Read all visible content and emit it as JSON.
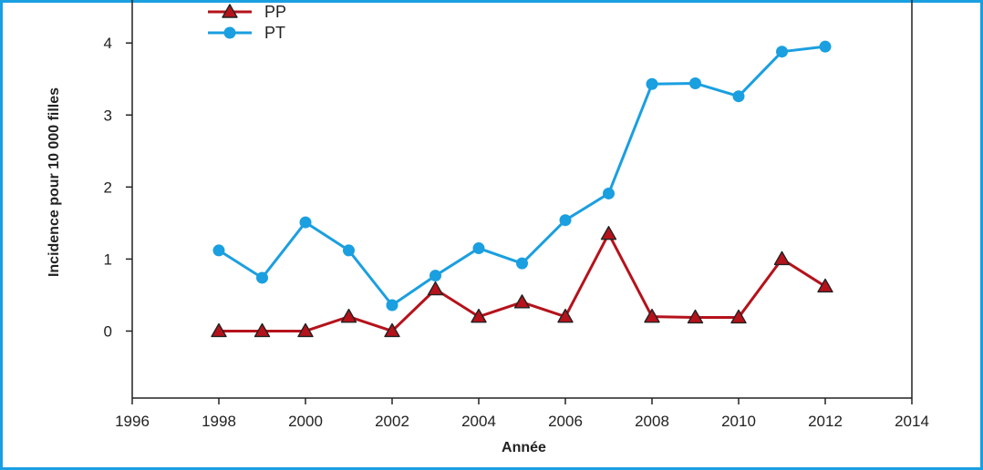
{
  "chart_data": {
    "type": "line",
    "xlabel": "Année",
    "ylabel": "Incidence pour 10 000 filles",
    "xlim": [
      1996,
      2014
    ],
    "ylim": [
      -0.93,
      4.85
    ],
    "xticks": [
      1996,
      1998,
      2000,
      2002,
      2004,
      2006,
      2008,
      2010,
      2012,
      2014
    ],
    "yticks": [
      0,
      1,
      2,
      3,
      4
    ],
    "grid": false,
    "legend_position": "top-left",
    "series": [
      {
        "name": "PP",
        "color": "#b5121b",
        "marker": "triangle",
        "x": [
          1998,
          1999,
          2000,
          2001,
          2002,
          2003,
          2004,
          2005,
          2006,
          2007,
          2008,
          2009,
          2010,
          2011,
          2012
        ],
        "y": [
          0,
          0,
          0,
          0.2,
          0,
          0.58,
          0.2,
          0.4,
          0.2,
          1.35,
          0.2,
          0.19,
          0.19,
          1.0,
          0.62
        ]
      },
      {
        "name": "PT",
        "color": "#1a9fe0",
        "marker": "circle",
        "x": [
          1998,
          1999,
          2000,
          2001,
          2002,
          2003,
          2004,
          2005,
          2006,
          2007,
          2008,
          2009,
          2010,
          2011,
          2012
        ],
        "y": [
          1.12,
          0.74,
          1.51,
          1.12,
          0.36,
          0.77,
          1.15,
          0.94,
          1.54,
          1.91,
          3.43,
          3.44,
          3.26,
          3.88,
          3.95
        ]
      }
    ]
  }
}
